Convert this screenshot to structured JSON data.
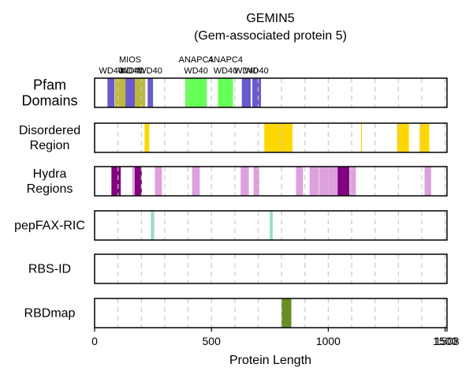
{
  "chart_data": {
    "type": "bar",
    "title": "GEMIN5",
    "subtitle": "(Gem-associated protein 5)",
    "xlabel": "Protein Length",
    "protein_length": 1508,
    "xlim": [
      0,
      1508
    ],
    "x_ticks": [
      {
        "value": 0,
        "label": "0"
      },
      {
        "value": 500,
        "label": "500"
      },
      {
        "value": 1000,
        "label": "1000"
      },
      {
        "value": 1500,
        "label": "1500"
      },
      {
        "value": 1508,
        "label": "1508"
      }
    ],
    "gridlines": [
      100,
      200,
      300,
      400,
      500,
      600,
      700,
      800,
      900,
      1000,
      1100,
      1200,
      1300,
      1400,
      1500
    ],
    "tracks": [
      {
        "label": "Pfam\nDomains",
        "segments": [
          {
            "start": 55,
            "end": 85,
            "color": "#6a5acd",
            "label": "WD40"
          },
          {
            "start": 87,
            "end": 217,
            "color": "#bdb93d",
            "label": "WD40",
            "label2": "MIOS"
          },
          {
            "start": 132,
            "end": 172,
            "color": "#6a5acd",
            "label": "WD40"
          },
          {
            "start": 227,
            "end": 250,
            "color": "#6a5acd",
            "label": "WD40"
          },
          {
            "start": 388,
            "end": 480,
            "color": "#66ff55",
            "label": "WD40",
            "label2": "ANAPC4"
          },
          {
            "start": 528,
            "end": 592,
            "color": "#66ff55",
            "label": "WD40",
            "label2": "ANAPC4"
          },
          {
            "start": 630,
            "end": 668,
            "color": "#6a5acd",
            "label": "WD40"
          },
          {
            "start": 675,
            "end": 712,
            "color": "#6a5acd",
            "label": "WD40"
          }
        ]
      },
      {
        "label": "Disordered\nRegion",
        "segments": [
          {
            "start": 214,
            "end": 234,
            "color": "#ffd700"
          },
          {
            "start": 726,
            "end": 847,
            "color": "#ffd700"
          },
          {
            "start": 1140,
            "end": 1144,
            "color": "#ffd700"
          },
          {
            "start": 1294,
            "end": 1345,
            "color": "#ffd700"
          },
          {
            "start": 1391,
            "end": 1432,
            "color": "#ffd700"
          }
        ]
      },
      {
        "label": "Hydra\nRegions",
        "segments": [
          {
            "start": 72,
            "end": 112,
            "color": "#800080"
          },
          {
            "start": 162,
            "end": 172,
            "color": "#dda0dd"
          },
          {
            "start": 172,
            "end": 202,
            "color": "#800080"
          },
          {
            "start": 258,
            "end": 288,
            "color": "#dda0dd"
          },
          {
            "start": 417,
            "end": 450,
            "color": "#dda0dd"
          },
          {
            "start": 625,
            "end": 660,
            "color": "#dda0dd"
          },
          {
            "start": 680,
            "end": 705,
            "color": "#dda0dd"
          },
          {
            "start": 862,
            "end": 892,
            "color": "#dda0dd"
          },
          {
            "start": 920,
            "end": 960,
            "color": "#dda0dd"
          },
          {
            "start": 962,
            "end": 1000,
            "color": "#dda0dd"
          },
          {
            "start": 1000,
            "end": 1040,
            "color": "#dda0dd"
          },
          {
            "start": 1040,
            "end": 1090,
            "color": "#800080"
          },
          {
            "start": 1092,
            "end": 1118,
            "color": "#dda0dd"
          },
          {
            "start": 1412,
            "end": 1440,
            "color": "#dda0dd"
          }
        ]
      },
      {
        "label": "pepFAX-RIC",
        "segments": [
          {
            "start": 241,
            "end": 255,
            "color": "#99dbbf"
          },
          {
            "start": 750,
            "end": 762,
            "color": "#99dbbf"
          }
        ]
      },
      {
        "label": "RBS-ID",
        "segments": []
      },
      {
        "label": "RBDmap",
        "segments": [
          {
            "start": 800,
            "end": 842,
            "color": "#6b8e23"
          }
        ]
      }
    ],
    "domain_labels": [
      {
        "text": "MIOS",
        "x": 152,
        "line": 1
      },
      {
        "text": "WD40",
        "x": 70,
        "line": 2
      },
      {
        "text": "WD40",
        "x": 152,
        "line": 2
      },
      {
        "text": "WD40",
        "x": 160,
        "line": 2
      },
      {
        "text": "WD40",
        "x": 238,
        "line": 2
      },
      {
        "text": "ANAPC4",
        "x": 434,
        "line": 1
      },
      {
        "text": "ANAPC4",
        "x": 560,
        "line": 1
      },
      {
        "text": "WD40",
        "x": 434,
        "line": 2
      },
      {
        "text": "WD40",
        "x": 560,
        "line": 2
      },
      {
        "text": "WD40",
        "x": 649,
        "line": 2
      },
      {
        "text": "WD40",
        "x": 693,
        "line": 2
      }
    ]
  }
}
